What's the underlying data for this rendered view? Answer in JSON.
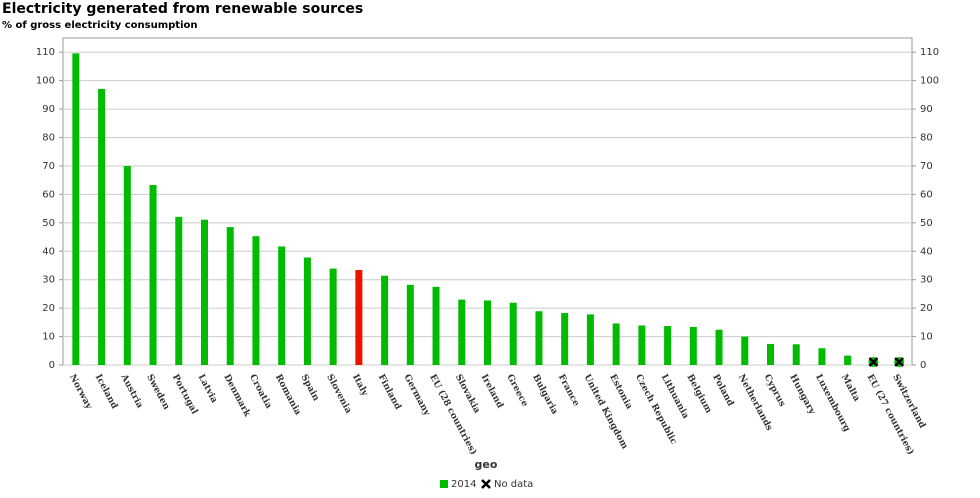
{
  "chart_data": {
    "type": "bar",
    "title": "Electricity generated from renewable sources",
    "subtitle": "% of gross electricity consumption",
    "x_label": "geo",
    "categories": [
      "Norway",
      "Iceland",
      "Austria",
      "Sweden",
      "Portugal",
      "Latvia",
      "Denmark",
      "Croatia",
      "Romania",
      "Spain",
      "Slovenia",
      "Italy",
      "Finland",
      "Germany",
      "EU (28 countries)",
      "Slovakia",
      "Ireland",
      "Greece",
      "Bulgaria",
      "France",
      "United Kingdom",
      "Estonia",
      "Czech Republic",
      "Lithuania",
      "Belgium",
      "Poland",
      "Netherlands",
      "Cyprus",
      "Hungary",
      "Luxembourg",
      "Malta",
      "EU (27 countries)",
      "Switzerland"
    ],
    "series": [
      {
        "name": "2014",
        "color": "#00bb00",
        "values": [
          109.6,
          97.1,
          70.0,
          63.3,
          52.1,
          51.1,
          48.5,
          45.3,
          41.7,
          37.8,
          33.9,
          33.4,
          31.4,
          28.2,
          27.5,
          23.0,
          22.7,
          21.9,
          18.9,
          18.3,
          17.8,
          14.6,
          13.9,
          13.7,
          13.4,
          12.4,
          10.0,
          7.4,
          7.3,
          5.9,
          3.3,
          null,
          null
        ],
        "colors": [
          "#00bb00",
          "#00bb00",
          "#00bb00",
          "#00bb00",
          "#00bb00",
          "#00bb00",
          "#00bb00",
          "#00bb00",
          "#00bb00",
          "#00bb00",
          "#00bb00",
          "#ee1100",
          "#00bb00",
          "#00bb00",
          "#00bb00",
          "#00bb00",
          "#00bb00",
          "#00bb00",
          "#00bb00",
          "#00bb00",
          "#00bb00",
          "#00bb00",
          "#00bb00",
          "#00bb00",
          "#00bb00",
          "#00bb00",
          "#00bb00",
          "#00bb00",
          "#00bb00",
          "#00bb00",
          "#00bb00",
          "#00bb00",
          "#00bb00"
        ]
      }
    ],
    "no_data_label": "No data",
    "ylim": [
      0,
      115
    ],
    "yticks": [
      0,
      10,
      20,
      30,
      40,
      50,
      60,
      70,
      80,
      90,
      100,
      110
    ],
    "grid": true
  }
}
